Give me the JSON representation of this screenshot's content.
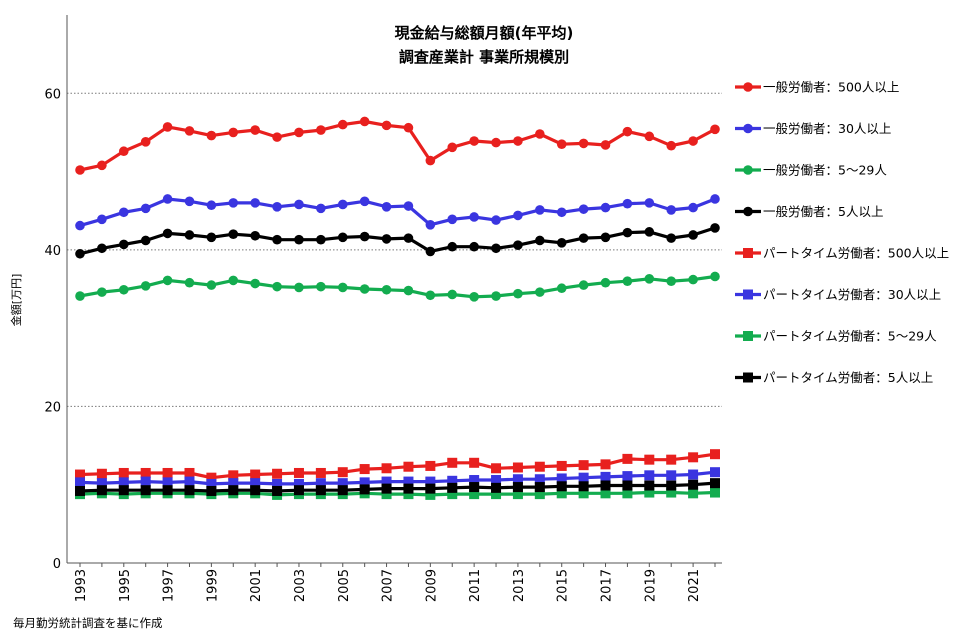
{
  "chart_data": {
    "type": "line",
    "title": [
      "現金給与総額月額(年平均)",
      "調査産業計 事業所規模別"
    ],
    "ylabel": "金額[万円]",
    "xlabel": "",
    "ylim": [
      0,
      70
    ],
    "yticks": [
      0,
      20,
      40,
      60
    ],
    "grid": "horizontal dotted",
    "legend_position": "right",
    "x": [
      1993,
      1994,
      1995,
      1996,
      1997,
      1998,
      1999,
      2000,
      2001,
      2002,
      2003,
      2004,
      2005,
      2006,
      2007,
      2008,
      2009,
      2010,
      2011,
      2012,
      2013,
      2014,
      2015,
      2016,
      2017,
      2018,
      2019,
      2020,
      2021,
      2022
    ],
    "xtick_labels": [
      "1993",
      "1995",
      "1997",
      "1999",
      "2001",
      "2003",
      "2005",
      "2007",
      "2009",
      "2011",
      "2013",
      "2015",
      "2017",
      "2019",
      "2021"
    ],
    "series": [
      {
        "name": "一般労働者：500人以上",
        "color": "#e8201e",
        "marker": "circle",
        "values": [
          50.2,
          50.8,
          52.6,
          53.8,
          55.7,
          55.2,
          54.6,
          55.0,
          55.3,
          54.4,
          55.0,
          55.3,
          56.0,
          56.4,
          55.9,
          55.6,
          51.4,
          53.1,
          53.9,
          53.7,
          53.9,
          54.8,
          53.5,
          53.6,
          53.4,
          55.1,
          54.5,
          53.3,
          53.9,
          55.4
        ]
      },
      {
        "name": "一般労働者：30人以上",
        "color": "#3a35e0",
        "marker": "circle",
        "values": [
          43.1,
          43.9,
          44.8,
          45.3,
          46.5,
          46.2,
          45.7,
          46.0,
          46.0,
          45.5,
          45.8,
          45.3,
          45.8,
          46.2,
          45.5,
          45.6,
          43.2,
          43.9,
          44.2,
          43.8,
          44.4,
          45.1,
          44.8,
          45.2,
          45.4,
          45.9,
          46.0,
          45.1,
          45.4,
          46.5
        ]
      },
      {
        "name": "一般労働者：5〜29人",
        "color": "#13ac4f",
        "marker": "circle",
        "values": [
          34.1,
          34.6,
          34.9,
          35.4,
          36.1,
          35.8,
          35.5,
          36.1,
          35.7,
          35.3,
          35.2,
          35.3,
          35.2,
          35.0,
          34.9,
          34.8,
          34.2,
          34.3,
          34.0,
          34.1,
          34.4,
          34.6,
          35.1,
          35.5,
          35.8,
          36.0,
          36.3,
          36.0,
          36.2,
          36.6
        ]
      },
      {
        "name": "一般労働者：5人以上",
        "color": "#000000",
        "marker": "circle",
        "values": [
          39.5,
          40.2,
          40.7,
          41.2,
          42.1,
          41.9,
          41.6,
          42.0,
          41.8,
          41.3,
          41.3,
          41.3,
          41.6,
          41.7,
          41.4,
          41.5,
          39.8,
          40.4,
          40.4,
          40.2,
          40.6,
          41.2,
          40.9,
          41.5,
          41.6,
          42.2,
          42.3,
          41.5,
          41.9,
          42.8
        ]
      },
      {
        "name": "パートタイム労働者：500人以上",
        "color": "#e8201e",
        "marker": "square",
        "values": [
          11.3,
          11.4,
          11.5,
          11.5,
          11.5,
          11.5,
          10.9,
          11.2,
          11.3,
          11.4,
          11.5,
          11.5,
          11.6,
          12.0,
          12.1,
          12.3,
          12.4,
          12.8,
          12.8,
          12.1,
          12.2,
          12.3,
          12.4,
          12.5,
          12.6,
          13.3,
          13.2,
          13.2,
          13.5,
          13.9
        ]
      },
      {
        "name": "パートタイム労働者：30人以上",
        "color": "#3a35e0",
        "marker": "square",
        "values": [
          10.3,
          10.2,
          10.3,
          10.4,
          10.3,
          10.4,
          10.1,
          10.2,
          10.2,
          10.1,
          10.1,
          10.2,
          10.2,
          10.3,
          10.4,
          10.4,
          10.4,
          10.5,
          10.6,
          10.6,
          10.7,
          10.7,
          10.8,
          10.9,
          11.0,
          11.1,
          11.2,
          11.2,
          11.3,
          11.6
        ]
      },
      {
        "name": "パートタイム労働者：5〜29人",
        "color": "#13ac4f",
        "marker": "square",
        "values": [
          8.8,
          8.9,
          8.8,
          8.9,
          8.9,
          8.9,
          8.8,
          8.9,
          8.9,
          8.7,
          8.8,
          8.8,
          8.8,
          8.9,
          8.8,
          8.8,
          8.7,
          8.8,
          8.8,
          8.8,
          8.8,
          8.8,
          8.9,
          8.9,
          8.9,
          8.9,
          9.0,
          9.0,
          8.9,
          9.0
        ]
      },
      {
        "name": "パートタイム労働者：5人以上",
        "color": "#000000",
        "marker": "square",
        "values": [
          9.2,
          9.3,
          9.3,
          9.3,
          9.3,
          9.3,
          9.2,
          9.3,
          9.3,
          9.2,
          9.3,
          9.3,
          9.3,
          9.4,
          9.5,
          9.5,
          9.5,
          9.6,
          9.7,
          9.6,
          9.7,
          9.7,
          9.8,
          9.8,
          9.9,
          9.9,
          9.9,
          9.9,
          10.0,
          10.2
        ]
      }
    ]
  },
  "source": "毎月勤労統計調査を基に作成"
}
